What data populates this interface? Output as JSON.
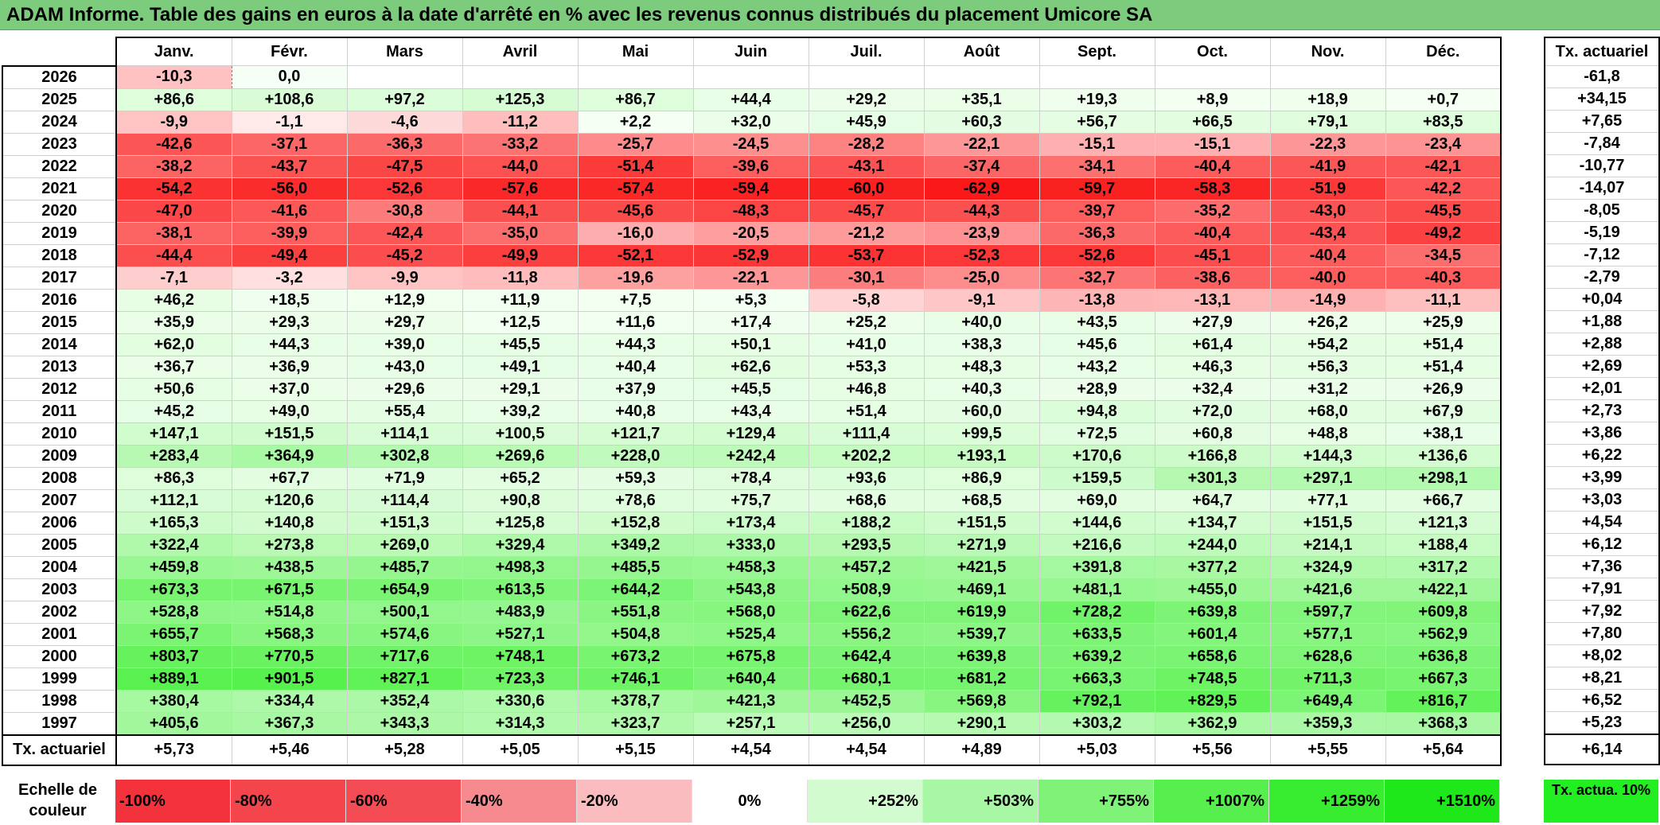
{
  "title": "ADAM Informe. Table des gains en euros à la date d'arrêté en % avec les revenus connus distribués du placement Umicore SA",
  "months": [
    "Janv.",
    "Févr.",
    "Mars",
    "Avril",
    "Mai",
    "Juin",
    "Juil.",
    "Août",
    "Sept.",
    "Oct.",
    "Nov.",
    "Déc."
  ],
  "side_header": "Tx. actuariel",
  "rows": [
    {
      "year": "2026",
      "values": [
        "-10,3",
        "0,0",
        "",
        "",
        "",
        "",
        "",
        "",
        "",
        "",
        "",
        ""
      ],
      "rate": "-61,8"
    },
    {
      "year": "2025",
      "values": [
        "+86,6",
        "+108,6",
        "+97,2",
        "+125,3",
        "+86,7",
        "+44,4",
        "+29,2",
        "+35,1",
        "+19,3",
        "+8,9",
        "+18,9",
        "+0,7"
      ],
      "rate": "+34,15"
    },
    {
      "year": "2024",
      "values": [
        "-9,9",
        "-1,1",
        "-4,6",
        "-11,2",
        "+2,2",
        "+32,0",
        "+45,9",
        "+60,3",
        "+56,7",
        "+66,5",
        "+79,1",
        "+83,5"
      ],
      "rate": "+7,65"
    },
    {
      "year": "2023",
      "values": [
        "-42,6",
        "-37,1",
        "-36,3",
        "-33,2",
        "-25,7",
        "-24,5",
        "-28,2",
        "-22,1",
        "-15,1",
        "-15,1",
        "-22,3",
        "-23,4"
      ],
      "rate": "-7,84"
    },
    {
      "year": "2022",
      "values": [
        "-38,2",
        "-43,7",
        "-47,5",
        "-44,0",
        "-51,4",
        "-39,6",
        "-43,1",
        "-37,4",
        "-34,1",
        "-40,4",
        "-41,9",
        "-42,1"
      ],
      "rate": "-10,77"
    },
    {
      "year": "2021",
      "values": [
        "-54,2",
        "-56,0",
        "-52,6",
        "-57,6",
        "-57,4",
        "-59,4",
        "-60,0",
        "-62,9",
        "-59,7",
        "-58,3",
        "-51,9",
        "-42,2"
      ],
      "rate": "-14,07"
    },
    {
      "year": "2020",
      "values": [
        "-47,0",
        "-41,6",
        "-30,8",
        "-44,1",
        "-45,6",
        "-48,3",
        "-45,7",
        "-44,3",
        "-39,7",
        "-35,2",
        "-43,0",
        "-45,5"
      ],
      "rate": "-8,05"
    },
    {
      "year": "2019",
      "values": [
        "-38,1",
        "-39,9",
        "-42,4",
        "-35,0",
        "-16,0",
        "-20,5",
        "-21,2",
        "-23,9",
        "-36,3",
        "-40,4",
        "-43,4",
        "-49,2"
      ],
      "rate": "-5,19"
    },
    {
      "year": "2018",
      "values": [
        "-44,4",
        "-49,4",
        "-45,2",
        "-49,9",
        "-52,1",
        "-52,9",
        "-53,7",
        "-52,3",
        "-52,6",
        "-45,1",
        "-40,4",
        "-34,5"
      ],
      "rate": "-7,12"
    },
    {
      "year": "2017",
      "values": [
        "-7,1",
        "-3,2",
        "-9,9",
        "-11,8",
        "-19,6",
        "-22,1",
        "-30,1",
        "-25,0",
        "-32,7",
        "-38,6",
        "-40,0",
        "-40,3"
      ],
      "rate": "-2,79"
    },
    {
      "year": "2016",
      "values": [
        "+46,2",
        "+18,5",
        "+12,9",
        "+11,9",
        "+7,5",
        "+5,3",
        "-5,8",
        "-9,1",
        "-13,8",
        "-13,1",
        "-14,9",
        "-11,1"
      ],
      "rate": "+0,04"
    },
    {
      "year": "2015",
      "values": [
        "+35,9",
        "+29,3",
        "+29,7",
        "+12,5",
        "+11,6",
        "+17,4",
        "+25,2",
        "+40,0",
        "+43,5",
        "+27,9",
        "+26,2",
        "+25,9"
      ],
      "rate": "+1,88"
    },
    {
      "year": "2014",
      "values": [
        "+62,0",
        "+44,3",
        "+39,0",
        "+45,5",
        "+44,3",
        "+50,1",
        "+41,0",
        "+38,3",
        "+45,6",
        "+61,4",
        "+54,2",
        "+51,4"
      ],
      "rate": "+2,88"
    },
    {
      "year": "2013",
      "values": [
        "+36,7",
        "+36,9",
        "+43,0",
        "+49,1",
        "+40,4",
        "+62,6",
        "+53,3",
        "+48,3",
        "+43,2",
        "+46,3",
        "+56,3",
        "+51,4"
      ],
      "rate": "+2,69"
    },
    {
      "year": "2012",
      "values": [
        "+50,6",
        "+37,0",
        "+29,6",
        "+29,1",
        "+37,9",
        "+45,5",
        "+46,8",
        "+40,3",
        "+28,9",
        "+32,4",
        "+31,2",
        "+26,9"
      ],
      "rate": "+2,01"
    },
    {
      "year": "2011",
      "values": [
        "+45,2",
        "+49,0",
        "+55,4",
        "+39,2",
        "+40,8",
        "+43,4",
        "+51,4",
        "+60,0",
        "+94,8",
        "+72,0",
        "+68,0",
        "+67,9"
      ],
      "rate": "+2,73"
    },
    {
      "year": "2010",
      "values": [
        "+147,1",
        "+151,5",
        "+114,1",
        "+100,5",
        "+121,7",
        "+129,4",
        "+111,4",
        "+99,5",
        "+72,5",
        "+60,8",
        "+48,8",
        "+38,1"
      ],
      "rate": "+3,86"
    },
    {
      "year": "2009",
      "values": [
        "+283,4",
        "+364,9",
        "+302,8",
        "+269,6",
        "+228,0",
        "+242,4",
        "+202,2",
        "+193,1",
        "+170,6",
        "+166,8",
        "+144,3",
        "+136,6"
      ],
      "rate": "+6,22"
    },
    {
      "year": "2008",
      "values": [
        "+86,3",
        "+67,7",
        "+71,9",
        "+65,2",
        "+59,3",
        "+78,4",
        "+93,6",
        "+86,9",
        "+159,5",
        "+301,3",
        "+297,1",
        "+298,1"
      ],
      "rate": "+3,99"
    },
    {
      "year": "2007",
      "values": [
        "+112,1",
        "+120,6",
        "+114,4",
        "+90,8",
        "+78,6",
        "+75,7",
        "+68,6",
        "+68,5",
        "+69,0",
        "+64,7",
        "+77,1",
        "+66,7"
      ],
      "rate": "+3,03"
    },
    {
      "year": "2006",
      "values": [
        "+165,3",
        "+140,8",
        "+151,3",
        "+125,8",
        "+152,8",
        "+173,4",
        "+188,2",
        "+151,5",
        "+144,6",
        "+134,7",
        "+151,5",
        "+121,3"
      ],
      "rate": "+4,54"
    },
    {
      "year": "2005",
      "values": [
        "+322,4",
        "+273,8",
        "+269,0",
        "+329,4",
        "+349,2",
        "+333,0",
        "+293,5",
        "+271,9",
        "+216,6",
        "+244,0",
        "+214,1",
        "+188,4"
      ],
      "rate": "+6,12"
    },
    {
      "year": "2004",
      "values": [
        "+459,8",
        "+438,5",
        "+485,7",
        "+498,3",
        "+485,5",
        "+458,3",
        "+457,2",
        "+421,5",
        "+391,8",
        "+377,2",
        "+324,9",
        "+317,2"
      ],
      "rate": "+7,36"
    },
    {
      "year": "2003",
      "values": [
        "+673,3",
        "+671,5",
        "+654,9",
        "+613,5",
        "+644,2",
        "+543,8",
        "+508,9",
        "+469,1",
        "+481,1",
        "+455,0",
        "+421,6",
        "+422,1"
      ],
      "rate": "+7,91"
    },
    {
      "year": "2002",
      "values": [
        "+528,8",
        "+514,8",
        "+500,1",
        "+483,9",
        "+551,8",
        "+568,0",
        "+622,6",
        "+619,9",
        "+728,2",
        "+639,8",
        "+597,7",
        "+609,8"
      ],
      "rate": "+7,92"
    },
    {
      "year": "2001",
      "values": [
        "+655,7",
        "+568,3",
        "+574,6",
        "+527,1",
        "+504,8",
        "+525,4",
        "+556,2",
        "+539,7",
        "+633,5",
        "+601,4",
        "+577,1",
        "+562,9"
      ],
      "rate": "+7,80"
    },
    {
      "year": "2000",
      "values": [
        "+803,7",
        "+770,5",
        "+717,6",
        "+748,1",
        "+673,2",
        "+675,8",
        "+642,4",
        "+639,8",
        "+639,2",
        "+658,6",
        "+628,6",
        "+636,8"
      ],
      "rate": "+8,02"
    },
    {
      "year": "1999",
      "values": [
        "+889,1",
        "+901,5",
        "+827,1",
        "+723,3",
        "+746,1",
        "+640,4",
        "+680,1",
        "+681,2",
        "+663,3",
        "+748,5",
        "+711,3",
        "+667,3"
      ],
      "rate": "+8,21"
    },
    {
      "year": "1998",
      "values": [
        "+380,4",
        "+334,4",
        "+352,4",
        "+330,6",
        "+378,7",
        "+421,3",
        "+452,5",
        "+569,8",
        "+792,1",
        "+829,5",
        "+649,4",
        "+816,7"
      ],
      "rate": "+6,52"
    },
    {
      "year": "1997",
      "values": [
        "+405,6",
        "+367,3",
        "+343,3",
        "+314,3",
        "+323,7",
        "+257,1",
        "+256,0",
        "+290,1",
        "+303,2",
        "+362,9",
        "+359,3",
        "+368,3"
      ],
      "rate": "+5,23"
    }
  ],
  "totals": {
    "label": "Tx. actuariel",
    "values": [
      "+5,73",
      "+5,46",
      "+5,28",
      "+5,05",
      "+5,15",
      "+4,54",
      "+4,54",
      "+4,89",
      "+5,03",
      "+5,56",
      "+5,55",
      "+5,64"
    ],
    "rate": "+6,14"
  },
  "color_scale": {
    "label": "Echelle de couleur",
    "swatches": [
      {
        "label": "-100%",
        "color": "#f4323c"
      },
      {
        "label": "-80%",
        "color": "#f4444c"
      },
      {
        "label": "-60%",
        "color": "#f44c54"
      },
      {
        "label": "-40%",
        "color": "#f78a8e"
      },
      {
        "label": "-20%",
        "color": "#fbbcbf"
      },
      {
        "label": "0%",
        "color": "#ffffff"
      },
      {
        "label": "+252%",
        "color": "#d2fbd0"
      },
      {
        "label": "+503%",
        "color": "#a8f7a4"
      },
      {
        "label": "+755%",
        "color": "#7ef378"
      },
      {
        "label": "+1007%",
        "color": "#56ef4e"
      },
      {
        "label": "+1259%",
        "color": "#38ec30"
      },
      {
        "label": "+1510%",
        "color": "#1fe81a"
      }
    ],
    "rate_label": "Tx. actua. 10%",
    "rate_color": "#22ee22"
  }
}
